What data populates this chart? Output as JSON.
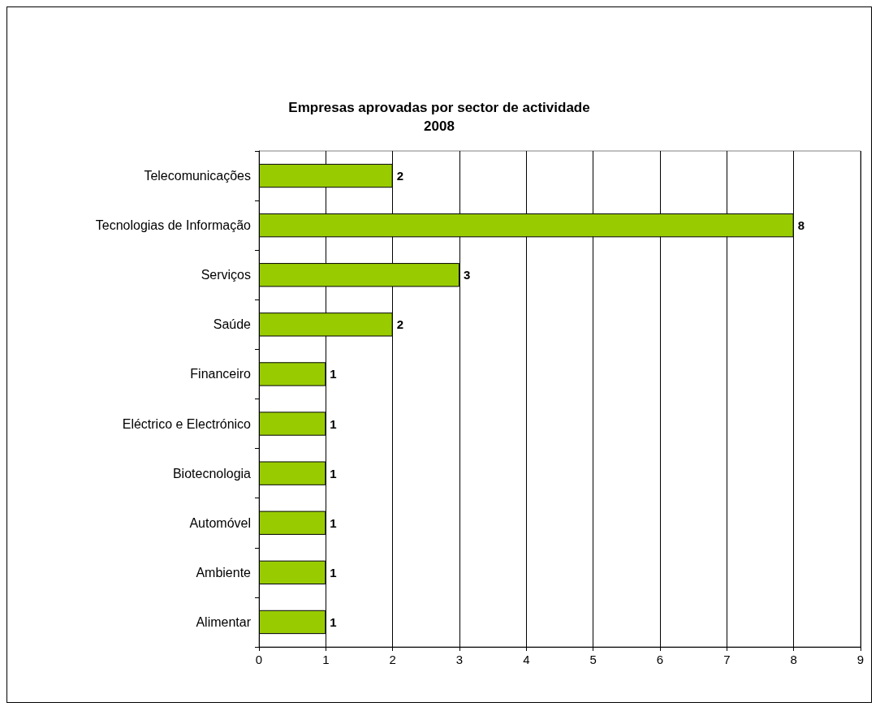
{
  "chart_data": {
    "type": "bar",
    "orientation": "horizontal",
    "title": "Empresas aprovadas por sector de actividade",
    "subtitle": "2008",
    "categories": [
      "Telecomunicações",
      "Tecnologias de Informação",
      "Serviços",
      "Saúde",
      "Financeiro",
      "Eléctrico e Electrónico",
      "Biotecnologia",
      "Automóvel",
      "Ambiente",
      "Alimentar"
    ],
    "values": [
      2,
      8,
      3,
      2,
      1,
      1,
      1,
      1,
      1,
      1
    ],
    "color": "#99cc00",
    "xlim": [
      0,
      9
    ],
    "xticks": [
      0,
      1,
      2,
      3,
      4,
      5,
      6,
      7,
      8,
      9
    ],
    "grid": "x",
    "data_labels": true
  }
}
